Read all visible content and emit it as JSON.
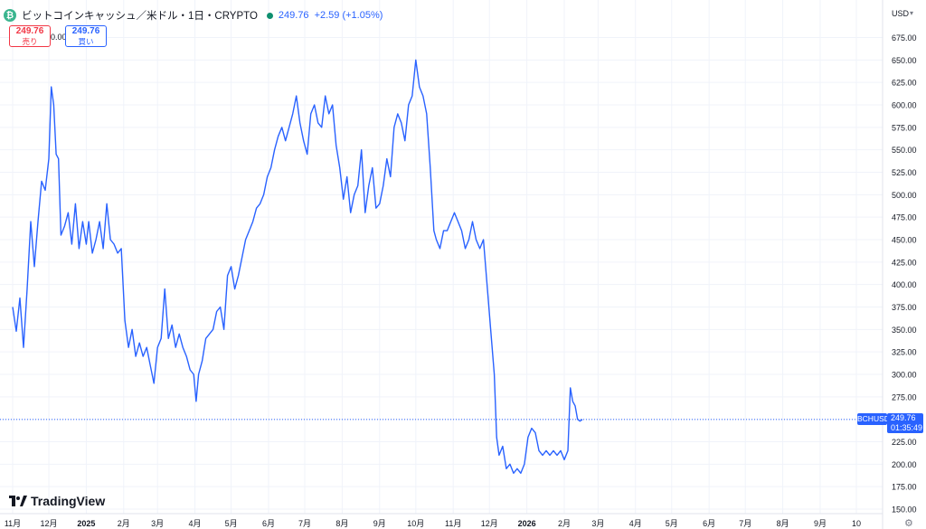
{
  "header": {
    "coin_glyph": "₿",
    "symbol_title": "ビットコインキャッシュ／米ドル・1日・CRYPTO",
    "last_price": "249.76",
    "change": "+2.59 (+1.05%)",
    "status_color": "#0f8f6f"
  },
  "quote": {
    "sell_price": "249.76",
    "sell_label": "売り",
    "spread": "0.00",
    "buy_price": "249.76",
    "buy_label": "買い"
  },
  "currency_label": "USD",
  "brand": "TradingView",
  "price_tag": {
    "symbol": "BCHUSD",
    "price": "249.76",
    "countdown": "01:35:49"
  },
  "colors": {
    "line": "#2962ff",
    "grid": "#f0f3fa",
    "sell": "#f23645",
    "buy": "#2962ff"
  },
  "chart_data": {
    "type": "line",
    "symbol": "BCHUSD",
    "interval": "1日",
    "ylim": [
      150,
      690
    ],
    "y_ticks": [
      150,
      175,
      200,
      225,
      250,
      275,
      300,
      325,
      350,
      375,
      400,
      425,
      450,
      475,
      500,
      525,
      550,
      575,
      600,
      625,
      650,
      675
    ],
    "y_tick_labels": [
      "150.00",
      "175.00",
      "200.00",
      "225.00",
      "250.00",
      "275.00",
      "300.00",
      "325.00",
      "350.00",
      "375.00",
      "400.00",
      "425.00",
      "450.00",
      "475.00",
      "500.00",
      "525.00",
      "550.00",
      "575.00",
      "600.00",
      "625.00",
      "650.00",
      "675.00"
    ],
    "x_ticks": [
      "11月",
      "12月",
      "2025",
      "2月",
      "3月",
      "4月",
      "5月",
      "6月",
      "7月",
      "8月",
      "9月",
      "10月",
      "11月",
      "12月",
      "2026",
      "2月",
      "3月",
      "4月",
      "5月",
      "6月",
      "7月",
      "8月",
      "9月",
      "10"
    ],
    "x_tick_index": [
      0,
      30,
      61,
      92,
      120,
      151,
      181,
      212,
      242,
      273,
      304,
      334,
      365,
      395,
      426,
      457,
      485,
      516,
      546,
      577,
      607,
      638,
      669,
      699
    ],
    "last_value": 249.76,
    "points": [
      [
        0,
        375
      ],
      [
        3,
        348
      ],
      [
        6,
        385
      ],
      [
        9,
        330
      ],
      [
        12,
        395
      ],
      [
        15,
        470
      ],
      [
        18,
        420
      ],
      [
        21,
        470
      ],
      [
        24,
        515
      ],
      [
        27,
        505
      ],
      [
        30,
        540
      ],
      [
        32,
        620
      ],
      [
        34,
        600
      ],
      [
        36,
        545
      ],
      [
        38,
        540
      ],
      [
        40,
        455
      ],
      [
        43,
        465
      ],
      [
        46,
        480
      ],
      [
        49,
        445
      ],
      [
        52,
        490
      ],
      [
        55,
        440
      ],
      [
        58,
        470
      ],
      [
        61,
        445
      ],
      [
        63,
        470
      ],
      [
        66,
        435
      ],
      [
        69,
        450
      ],
      [
        72,
        470
      ],
      [
        75,
        440
      ],
      [
        78,
        490
      ],
      [
        81,
        450
      ],
      [
        84,
        445
      ],
      [
        87,
        435
      ],
      [
        90,
        440
      ],
      [
        93,
        360
      ],
      [
        96,
        330
      ],
      [
        99,
        350
      ],
      [
        102,
        320
      ],
      [
        105,
        335
      ],
      [
        108,
        320
      ],
      [
        111,
        330
      ],
      [
        114,
        310
      ],
      [
        117,
        290
      ],
      [
        120,
        330
      ],
      [
        123,
        340
      ],
      [
        126,
        395
      ],
      [
        129,
        340
      ],
      [
        132,
        355
      ],
      [
        135,
        330
      ],
      [
        138,
        345
      ],
      [
        141,
        330
      ],
      [
        144,
        320
      ],
      [
        147,
        305
      ],
      [
        150,
        300
      ],
      [
        152,
        270
      ],
      [
        154,
        300
      ],
      [
        157,
        315
      ],
      [
        160,
        340
      ],
      [
        163,
        345
      ],
      [
        166,
        350
      ],
      [
        169,
        370
      ],
      [
        172,
        375
      ],
      [
        175,
        350
      ],
      [
        178,
        410
      ],
      [
        181,
        420
      ],
      [
        184,
        395
      ],
      [
        187,
        410
      ],
      [
        190,
        430
      ],
      [
        193,
        450
      ],
      [
        196,
        460
      ],
      [
        199,
        470
      ],
      [
        202,
        485
      ],
      [
        205,
        490
      ],
      [
        208,
        500
      ],
      [
        211,
        520
      ],
      [
        214,
        530
      ],
      [
        217,
        550
      ],
      [
        220,
        565
      ],
      [
        223,
        575
      ],
      [
        226,
        560
      ],
      [
        229,
        575
      ],
      [
        232,
        590
      ],
      [
        235,
        610
      ],
      [
        238,
        580
      ],
      [
        241,
        560
      ],
      [
        244,
        545
      ],
      [
        247,
        590
      ],
      [
        250,
        600
      ],
      [
        253,
        580
      ],
      [
        256,
        575
      ],
      [
        259,
        610
      ],
      [
        262,
        590
      ],
      [
        265,
        600
      ],
      [
        268,
        555
      ],
      [
        271,
        530
      ],
      [
        274,
        495
      ],
      [
        277,
        520
      ],
      [
        280,
        480
      ],
      [
        283,
        500
      ],
      [
        286,
        510
      ],
      [
        289,
        550
      ],
      [
        292,
        480
      ],
      [
        295,
        510
      ],
      [
        298,
        530
      ],
      [
        301,
        485
      ],
      [
        304,
        490
      ],
      [
        307,
        510
      ],
      [
        310,
        540
      ],
      [
        313,
        520
      ],
      [
        316,
        575
      ],
      [
        319,
        590
      ],
      [
        322,
        580
      ],
      [
        325,
        560
      ],
      [
        328,
        600
      ],
      [
        331,
        610
      ],
      [
        334,
        650
      ],
      [
        337,
        620
      ],
      [
        340,
        610
      ],
      [
        343,
        590
      ],
      [
        346,
        530
      ],
      [
        349,
        460
      ],
      [
        351,
        450
      ],
      [
        354,
        440
      ],
      [
        357,
        460
      ],
      [
        360,
        460
      ],
      [
        363,
        470
      ],
      [
        366,
        480
      ],
      [
        369,
        470
      ],
      [
        372,
        460
      ],
      [
        375,
        440
      ],
      [
        378,
        450
      ],
      [
        381,
        470
      ],
      [
        384,
        450
      ],
      [
        387,
        440
      ],
      [
        390,
        450
      ],
      [
        393,
        400
      ],
      [
        396,
        350
      ],
      [
        399,
        300
      ],
      [
        401,
        230
      ],
      [
        403,
        210
      ],
      [
        406,
        220
      ],
      [
        409,
        195
      ],
      [
        412,
        200
      ],
      [
        415,
        190
      ],
      [
        418,
        195
      ],
      [
        421,
        190
      ],
      [
        424,
        200
      ],
      [
        427,
        230
      ],
      [
        430,
        240
      ],
      [
        433,
        235
      ],
      [
        436,
        215
      ],
      [
        439,
        210
      ],
      [
        442,
        215
      ],
      [
        445,
        210
      ],
      [
        448,
        215
      ],
      [
        451,
        210
      ],
      [
        454,
        215
      ],
      [
        457,
        205
      ],
      [
        460,
        215
      ],
      [
        462,
        285
      ],
      [
        464,
        270
      ],
      [
        466,
        265
      ],
      [
        468,
        250
      ],
      [
        470,
        248
      ],
      [
        472,
        249.76
      ]
    ]
  }
}
